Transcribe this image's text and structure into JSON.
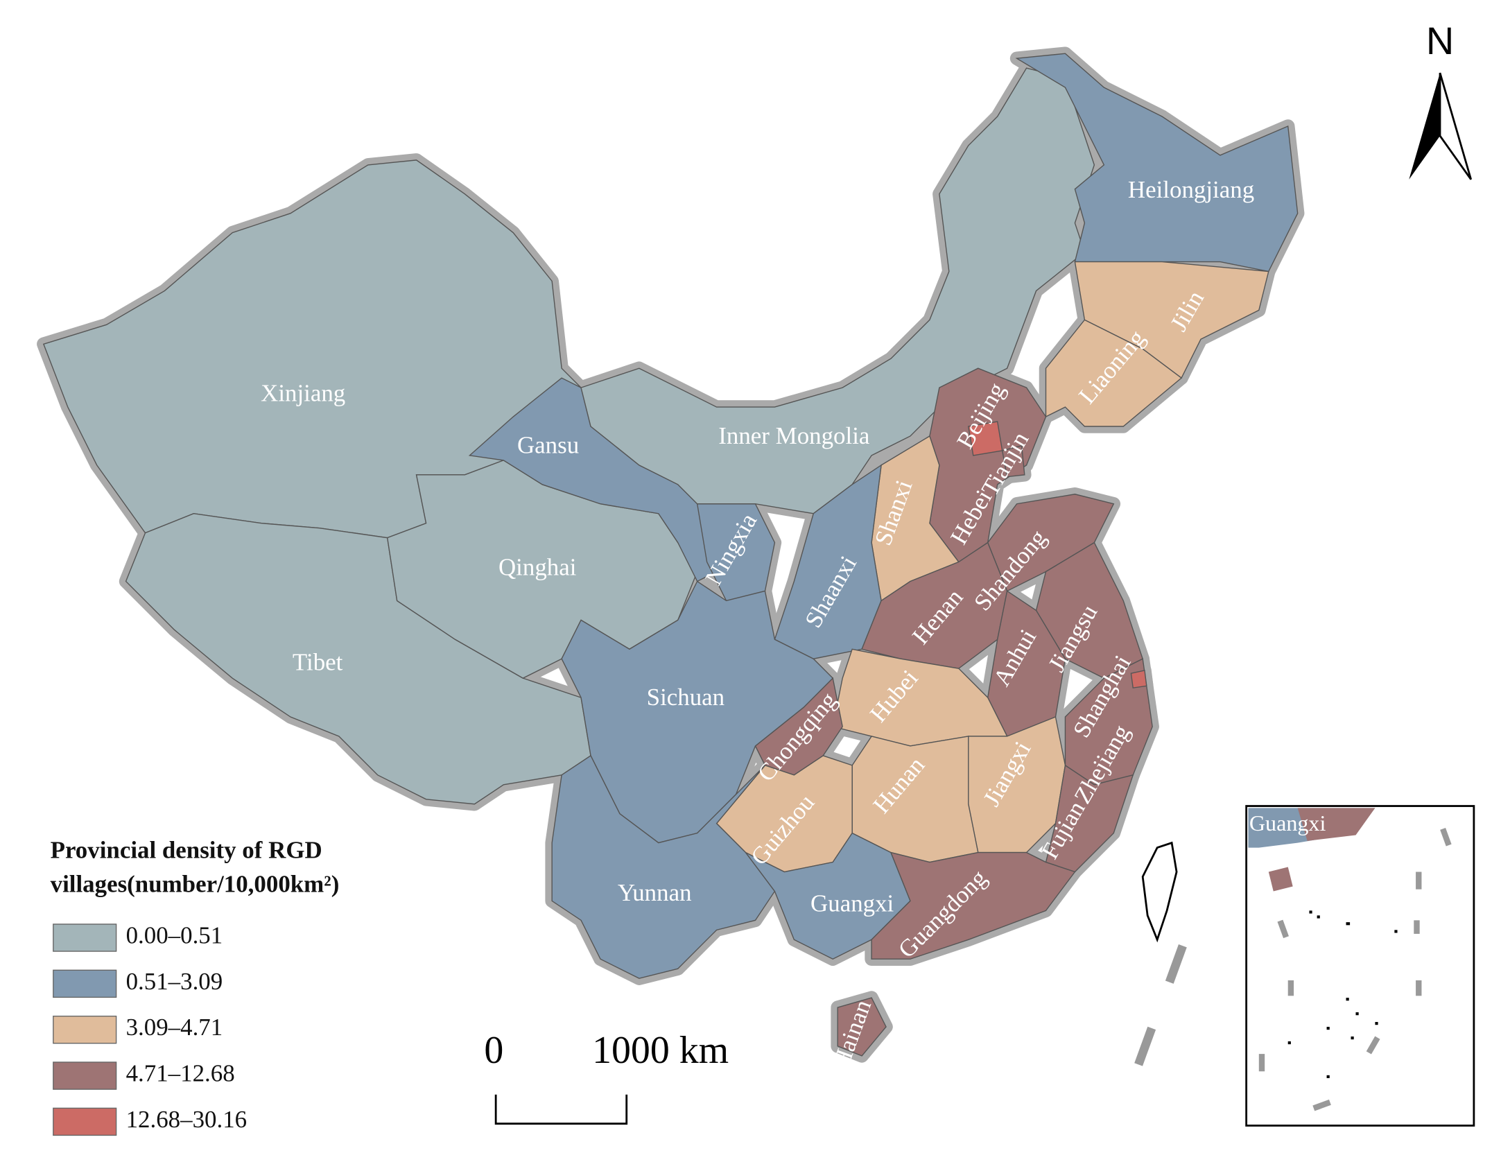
{
  "legend": {
    "title": [
      "Provincial density of RGD",
      "villages(number/10,000km²)"
    ],
    "classes": [
      {
        "label": "0.00–0.51",
        "color": "#a3b5b9"
      },
      {
        "label": "0.51–3.09",
        "color": "#8199b0"
      },
      {
        "label": "3.09–4.71",
        "color": "#e0bc9b"
      },
      {
        "label": "4.71–12.68",
        "color": "#9e7474"
      },
      {
        "label": "12.68–30.16",
        "color": "#cc6b65"
      }
    ]
  },
  "provinces": [
    {
      "name": "Xinjiang",
      "color": "#a3b5b9"
    },
    {
      "name": "Tibet",
      "color": "#a3b5b9"
    },
    {
      "name": "Qinghai",
      "color": "#a3b5b9"
    },
    {
      "name": "Gansu",
      "color": "#8199b0"
    },
    {
      "name": "Inner Mongolia",
      "color": "#a3b5b9"
    },
    {
      "name": "Heilongjiang",
      "color": "#8199b0"
    },
    {
      "name": "Jilin",
      "color": "#e0bc9b"
    },
    {
      "name": "Liaoning",
      "color": "#e0bc9b"
    },
    {
      "name": "Hebei",
      "color": "#9e7474"
    },
    {
      "name": "Shanxi",
      "color": "#e0bc9b"
    },
    {
      "name": "Shaanxi",
      "color": "#8199b0"
    },
    {
      "name": "Ningxia",
      "color": "#8199b0"
    },
    {
      "name": "Shandong",
      "color": "#9e7474"
    },
    {
      "name": "Henan",
      "color": "#9e7474"
    },
    {
      "name": "Jiangsu",
      "color": "#9e7474"
    },
    {
      "name": "Anhui",
      "color": "#9e7474"
    },
    {
      "name": "Hubei",
      "color": "#e0bc9b"
    },
    {
      "name": "Chongqing",
      "color": "#9e7474"
    },
    {
      "name": "Sichuan",
      "color": "#8199b0"
    },
    {
      "name": "Zhejiang",
      "color": "#9e7474"
    },
    {
      "name": "Jiangxi",
      "color": "#e0bc9b"
    },
    {
      "name": "Hunan",
      "color": "#e0bc9b"
    },
    {
      "name": "Guizhou",
      "color": "#e0bc9b"
    },
    {
      "name": "Fujian",
      "color": "#9e7474"
    },
    {
      "name": "Yunnan",
      "color": "#8199b0"
    },
    {
      "name": "Guangxi",
      "color": "#8199b0"
    },
    {
      "name": "Guangdong",
      "color": "#9e7474"
    },
    {
      "name": "Hainan",
      "color": "#9e7474"
    },
    {
      "name": "Beijing",
      "color": "#cc6b65"
    },
    {
      "name": "Tianjin",
      "color": "#9e7474"
    },
    {
      "name": "Shanghai",
      "color": "#cc6b65"
    }
  ],
  "scale_bar": {
    "start": "0",
    "end": "1000 km"
  },
  "north": "N",
  "inset": {
    "label": "Guangxi"
  }
}
